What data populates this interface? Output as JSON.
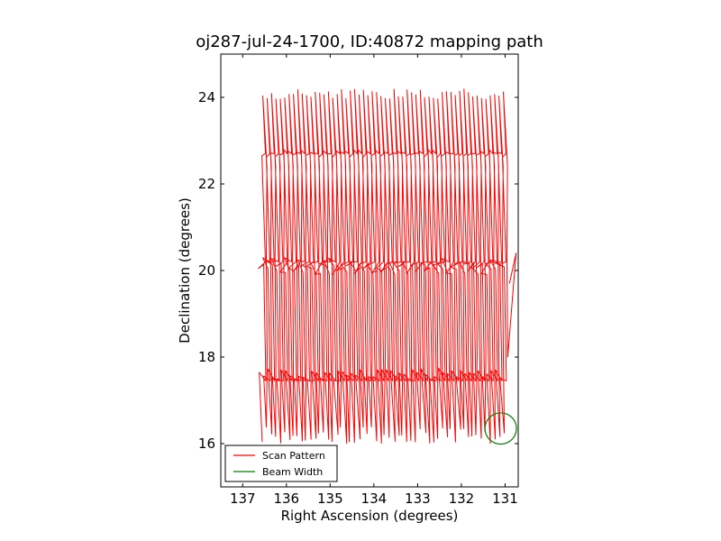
{
  "chart_data": {
    "type": "line",
    "title": "oj287-jul-24-1700, ID:40872 mapping path",
    "xlabel": "Right Ascension (degrees)",
    "ylabel": "Declination (degrees)",
    "xlim": [
      137.5,
      130.7
    ],
    "ylim": [
      15.0,
      25.0
    ],
    "x_inverted": true,
    "xticks": [
      137,
      136,
      135,
      134,
      133,
      132,
      131
    ],
    "yticks": [
      16,
      18,
      20,
      22,
      24
    ],
    "grid": false,
    "legend_position": "lower-left",
    "scan": {
      "ra_start": 136.5,
      "ra_end": 131.0,
      "columns": 56,
      "dec_min": 16.0,
      "dec_max": 24.2,
      "dec_mid": 20.1,
      "dec_upper_cross": 22.7,
      "dec_lower_cross": 17.6
    },
    "series": [
      {
        "name": "Scan Pattern",
        "color": "#ff0000",
        "style": "zigzag raster of vertical sweeps"
      },
      {
        "name": "Beam Width",
        "color": "#008000",
        "style": "circle",
        "center": [
          131.1,
          16.35
        ],
        "radius": 0.36
      }
    ]
  }
}
